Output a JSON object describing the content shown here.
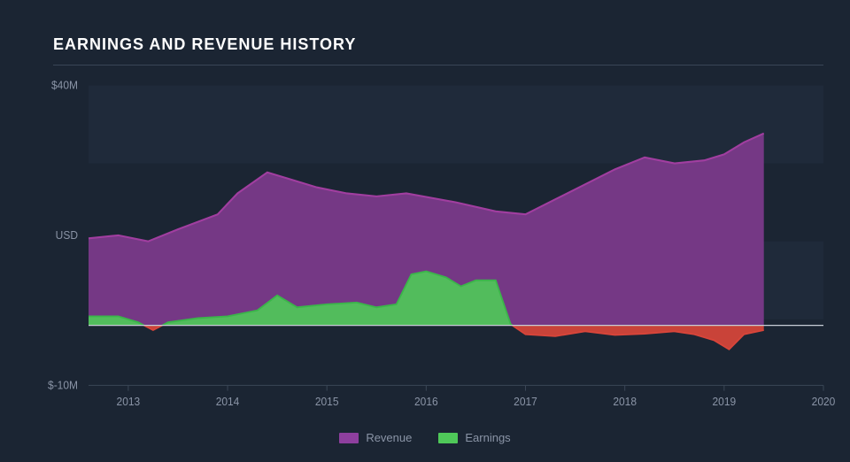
{
  "chart": {
    "type": "area",
    "title": "EARNINGS AND REVENUE HISTORY",
    "background_color": "#1b2533",
    "plot_background": "#1b2533",
    "grid_band_color": "#232e3f",
    "title_color": "#ffffff",
    "title_fontsize": 18,
    "axis_label_color": "#8a94a6",
    "axis_label_fontsize": 12,
    "zero_line_color": "#c7cdd6",
    "ylabel": "USD",
    "y_ticks": [
      {
        "value": -10,
        "label": "$-10M"
      },
      {
        "value": 40,
        "label": "$40M"
      }
    ],
    "y_mid_label_value": 15,
    "ylim": [
      -10,
      40
    ],
    "xlim": [
      2012.6,
      2020
    ],
    "x_ticks": [
      2013,
      2014,
      2015,
      2016,
      2017,
      2018,
      2019,
      2020
    ],
    "series": {
      "revenue": {
        "label": "Revenue",
        "stroke": "#a13ea0",
        "fill": "#7d3a8c",
        "fill_opacity": 0.92,
        "points": [
          {
            "x": 2012.6,
            "y": 14.5
          },
          {
            "x": 2012.9,
            "y": 15.0
          },
          {
            "x": 2013.2,
            "y": 14.0
          },
          {
            "x": 2013.5,
            "y": 16.0
          },
          {
            "x": 2013.9,
            "y": 18.5
          },
          {
            "x": 2014.1,
            "y": 22.0
          },
          {
            "x": 2014.4,
            "y": 25.5
          },
          {
            "x": 2014.6,
            "y": 24.5
          },
          {
            "x": 2014.9,
            "y": 23.0
          },
          {
            "x": 2015.2,
            "y": 22.0
          },
          {
            "x": 2015.5,
            "y": 21.5
          },
          {
            "x": 2015.8,
            "y": 22.0
          },
          {
            "x": 2016.3,
            "y": 20.5
          },
          {
            "x": 2016.7,
            "y": 19.0
          },
          {
            "x": 2017.0,
            "y": 18.5
          },
          {
            "x": 2017.3,
            "y": 21.0
          },
          {
            "x": 2017.6,
            "y": 23.5
          },
          {
            "x": 2017.9,
            "y": 26.0
          },
          {
            "x": 2018.2,
            "y": 28.0
          },
          {
            "x": 2018.5,
            "y": 27.0
          },
          {
            "x": 2018.8,
            "y": 27.5
          },
          {
            "x": 2019.0,
            "y": 28.5
          },
          {
            "x": 2019.2,
            "y": 30.5
          },
          {
            "x": 2019.4,
            "y": 32.0
          }
        ]
      },
      "earnings": {
        "label": "Earnings",
        "positive_stroke": "#3bb54a",
        "positive_fill": "#4fc859",
        "negative_stroke": "#d8453a",
        "negative_fill": "#d8453a",
        "fill_opacity": 0.92,
        "points": [
          {
            "x": 2012.6,
            "y": 1.5
          },
          {
            "x": 2012.9,
            "y": 1.5
          },
          {
            "x": 2013.1,
            "y": 0.5
          },
          {
            "x": 2013.25,
            "y": -0.8
          },
          {
            "x": 2013.4,
            "y": 0.5
          },
          {
            "x": 2013.7,
            "y": 1.2
          },
          {
            "x": 2014.0,
            "y": 1.5
          },
          {
            "x": 2014.3,
            "y": 2.5
          },
          {
            "x": 2014.5,
            "y": 5.0
          },
          {
            "x": 2014.7,
            "y": 3.0
          },
          {
            "x": 2015.0,
            "y": 3.5
          },
          {
            "x": 2015.3,
            "y": 3.8
          },
          {
            "x": 2015.5,
            "y": 3.0
          },
          {
            "x": 2015.7,
            "y": 3.5
          },
          {
            "x": 2015.85,
            "y": 8.5
          },
          {
            "x": 2016.0,
            "y": 9.0
          },
          {
            "x": 2016.2,
            "y": 8.0
          },
          {
            "x": 2016.35,
            "y": 6.5
          },
          {
            "x": 2016.5,
            "y": 7.5
          },
          {
            "x": 2016.7,
            "y": 7.5
          },
          {
            "x": 2016.85,
            "y": 0.2
          },
          {
            "x": 2017.0,
            "y": -1.5
          },
          {
            "x": 2017.3,
            "y": -1.8
          },
          {
            "x": 2017.6,
            "y": -1.0
          },
          {
            "x": 2017.9,
            "y": -1.6
          },
          {
            "x": 2018.2,
            "y": -1.4
          },
          {
            "x": 2018.5,
            "y": -1.0
          },
          {
            "x": 2018.7,
            "y": -1.5
          },
          {
            "x": 2018.9,
            "y": -2.5
          },
          {
            "x": 2019.05,
            "y": -4.0
          },
          {
            "x": 2019.2,
            "y": -1.5
          },
          {
            "x": 2019.4,
            "y": -0.8
          }
        ]
      }
    },
    "legend": [
      {
        "key": "revenue",
        "label": "Revenue",
        "color": "#8e3f9e"
      },
      {
        "key": "earnings",
        "label": "Earnings",
        "color": "#4fc859"
      }
    ]
  }
}
